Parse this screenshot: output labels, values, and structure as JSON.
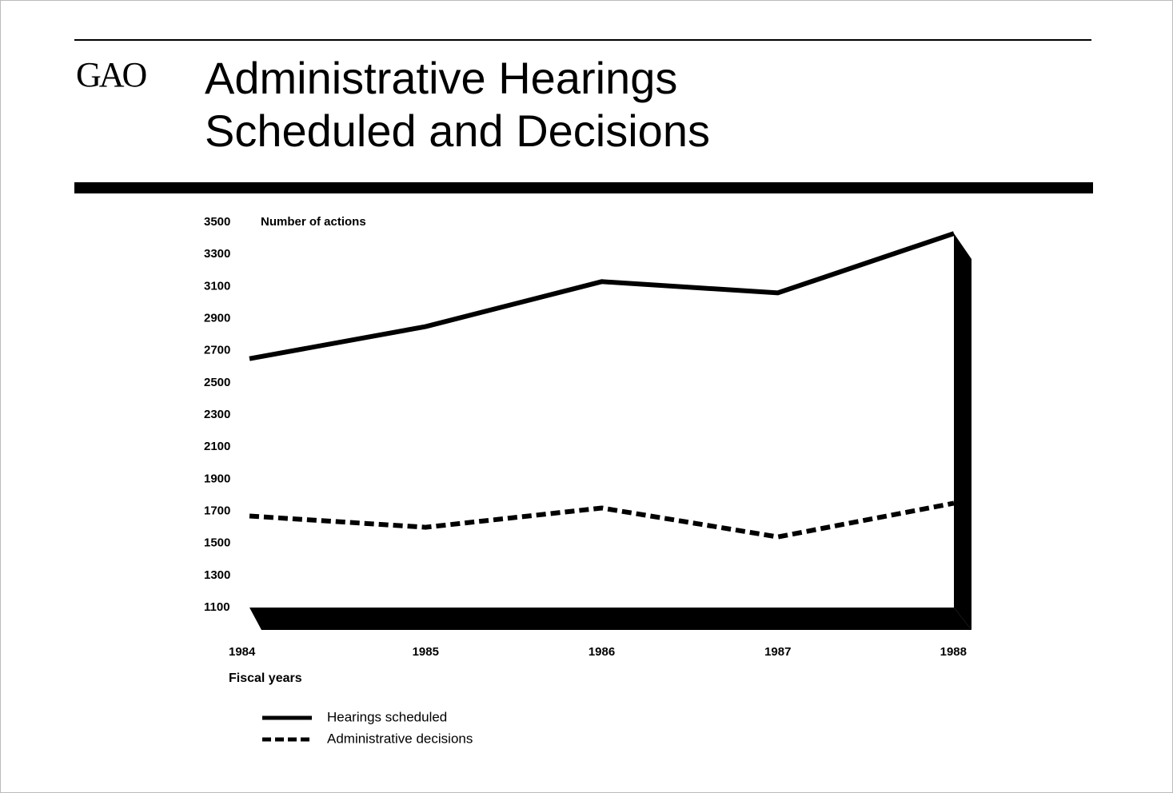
{
  "chart_data": {
    "type": "line",
    "brand": "GAO",
    "title": [
      "Administrative Hearings",
      "Scheduled and Decisions"
    ],
    "y_label": "Number of actions",
    "x_label": "Fiscal years",
    "categories": [
      "1984",
      "1985",
      "1986",
      "1987",
      "1988"
    ],
    "series": [
      {
        "name": "Hearings scheduled",
        "color": "#000000",
        "dash": "solid",
        "values": [
          2650,
          2850,
          3130,
          3060,
          3430
        ]
      },
      {
        "name": "Administrative decisions",
        "color": "#000000",
        "dash": "dashed",
        "values": [
          1670,
          1600,
          1720,
          1540,
          1750
        ]
      }
    ],
    "ylim": [
      1100,
      3500
    ],
    "yticks": [
      1100,
      1300,
      1500,
      1700,
      1900,
      2100,
      2300,
      2500,
      2700,
      2900,
      3100,
      3300,
      3500
    ],
    "grid": false
  }
}
